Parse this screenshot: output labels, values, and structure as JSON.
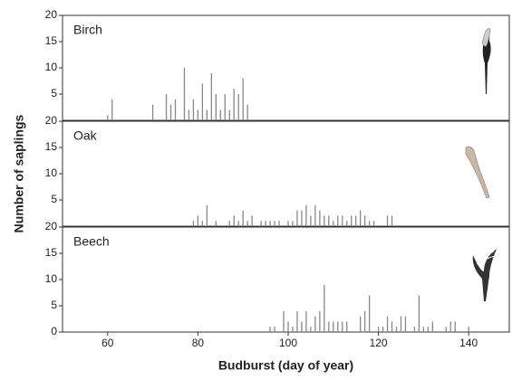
{
  "chart_data": [
    {
      "type": "bar",
      "title": "Birch",
      "color": "#888888",
      "x": [
        60,
        61,
        70,
        73,
        74,
        75,
        77,
        78,
        79,
        80,
        81,
        82,
        83,
        84,
        85,
        86,
        87,
        88,
        89,
        90,
        91
      ],
      "values": [
        1,
        4,
        3,
        5,
        3,
        4,
        10,
        2,
        4,
        2,
        7,
        2,
        9,
        5,
        2,
        5,
        2,
        6,
        5,
        8,
        3
      ],
      "xlim": [
        50,
        149
      ],
      "ylim": [
        0,
        20
      ],
      "yticks": [
        5,
        10,
        15,
        20
      ]
    },
    {
      "type": "bar",
      "title": "Oak",
      "color": "#888888",
      "ylabel": "Number of saplings",
      "x": [
        79,
        80,
        81,
        82,
        84,
        87,
        88,
        89,
        90,
        91,
        92,
        94,
        95,
        96,
        97,
        98,
        100,
        101,
        102,
        103,
        104,
        105,
        106,
        107,
        108,
        109,
        110,
        111,
        112,
        113,
        114,
        115,
        116,
        117,
        118,
        119,
        122,
        123
      ],
      "values": [
        1,
        2,
        1,
        4,
        1,
        1,
        2,
        1,
        3,
        1,
        2,
        1,
        1,
        1,
        1,
        1,
        1,
        1,
        3,
        3,
        4,
        2,
        4,
        3,
        2,
        2,
        1,
        2,
        2,
        1,
        2,
        2,
        3,
        2,
        1,
        1,
        2,
        2
      ],
      "xlim": [
        50,
        149
      ],
      "ylim": [
        0,
        20
      ],
      "yticks": [
        5,
        10,
        15,
        20
      ]
    },
    {
      "type": "bar",
      "title": "Beech",
      "color": "#888888",
      "xlabel": "Budburst (day of year)",
      "x": [
        96,
        97,
        99,
        100,
        101,
        102,
        103,
        104,
        105,
        106,
        107,
        108,
        109,
        110,
        111,
        112,
        113,
        116,
        117,
        118,
        120,
        121,
        122,
        123,
        124,
        125,
        126,
        128,
        129,
        130,
        131,
        132,
        135,
        136,
        137,
        140
      ],
      "values": [
        1,
        1,
        4,
        2,
        1,
        4,
        2,
        4,
        1,
        3,
        4,
        9,
        2,
        2,
        2,
        2,
        2,
        3,
        4,
        7,
        1,
        1,
        3,
        2,
        1,
        3,
        3,
        1,
        7,
        1,
        1,
        2,
        1,
        2,
        2,
        1
      ],
      "xlim": [
        50,
        149
      ],
      "ylim": [
        0,
        20
      ],
      "yticks": [
        0,
        5,
        10,
        15,
        20
      ],
      "xticks": [
        60,
        80,
        100,
        120,
        140
      ]
    }
  ]
}
